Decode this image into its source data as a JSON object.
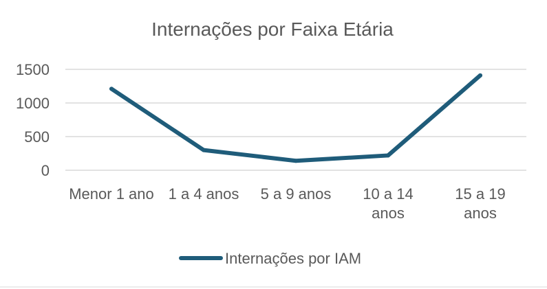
{
  "chart_data": {
    "type": "line",
    "title": "Internações por Faixa Etária",
    "categories": [
      [
        "Menor 1 ano"
      ],
      [
        "1 a 4 anos"
      ],
      [
        "5 a 9 anos"
      ],
      [
        "10 a 14",
        "anos"
      ],
      [
        "15 a 19",
        "anos"
      ]
    ],
    "series": [
      {
        "name": "Internações por IAM",
        "values": [
          1210,
          300,
          140,
          220,
          1410
        ],
        "color": "#1f5c7a"
      }
    ],
    "yticks": [
      "0",
      "500",
      "1000",
      "1500"
    ],
    "ylim": [
      0,
      1500
    ],
    "grid": true,
    "legend_position": "bottom"
  }
}
